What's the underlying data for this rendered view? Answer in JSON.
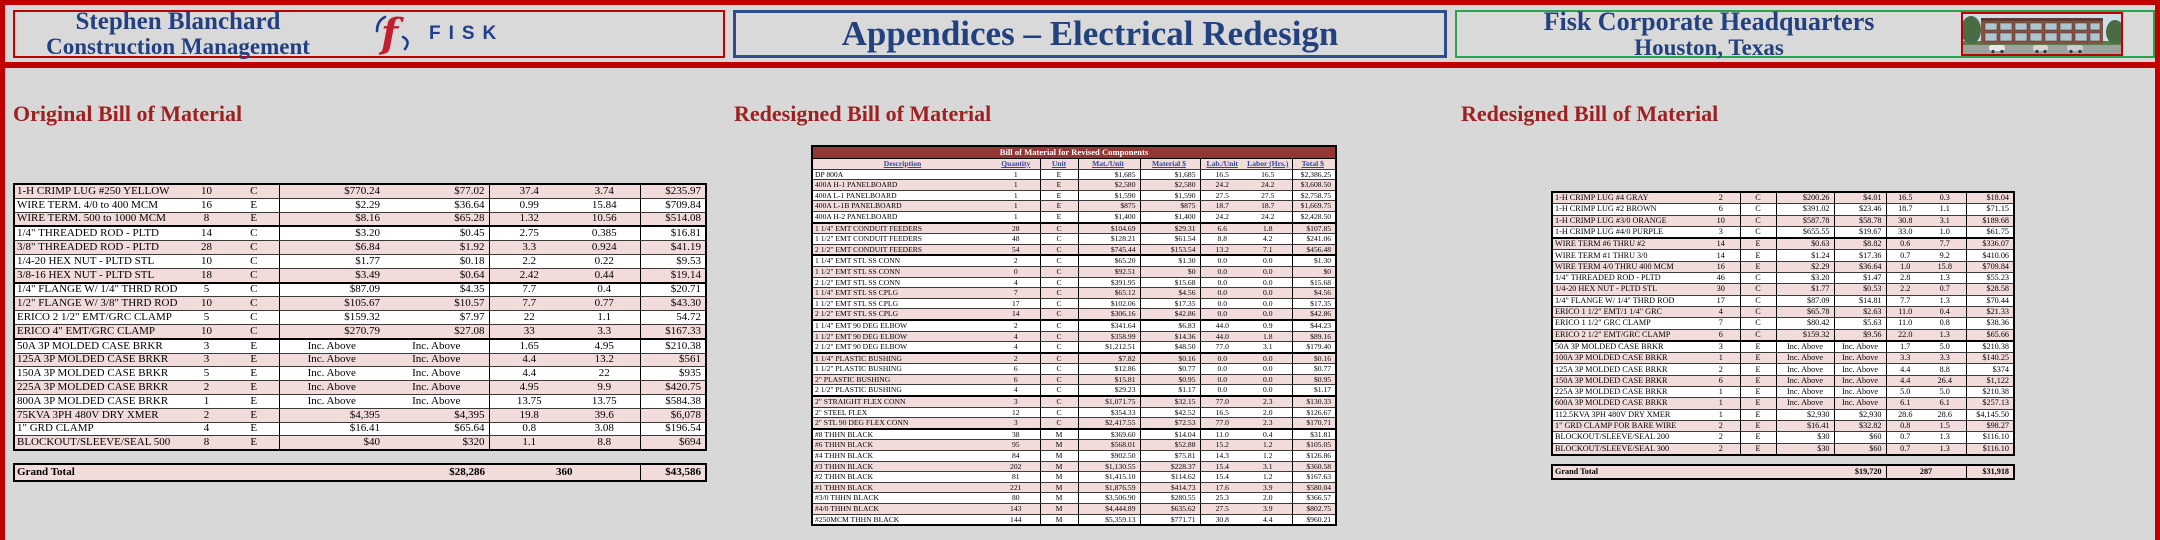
{
  "header": {
    "left": {
      "line1": "Stephen Blanchard",
      "line2": "Construction Management"
    },
    "logo_text": "FISK",
    "center": {
      "title": "Appendices – Electrical Redesign"
    },
    "right": {
      "line1": "Fisk Corporate Headquarters",
      "line2": "Houston, Texas"
    }
  },
  "colors": {
    "accent_red": "#c00000",
    "navy": "#24417f",
    "heading_red": "#9e2121",
    "row_pink": "#f2dcdb",
    "table_title_maroon": "#943634",
    "border_green": "#2ba24c"
  },
  "sections": {
    "left": {
      "heading": "Original Bill of Material",
      "table": {
        "zebra_first_pink": true,
        "group_end": [
          3,
          7,
          11
        ],
        "rows": [
          [
            "1-H CRIMP LUG #250 YELLOW",
            "10",
            "C",
            "$770.24",
            "$77.02",
            "37.4",
            "3.74",
            "$235.97"
          ],
          [
            "WIRE TERM. 4/0 to 400 MCM",
            "16",
            "E",
            "$2.29",
            "$36.64",
            "0.99",
            "15.84",
            "$709.84"
          ],
          [
            "WIRE TERM. 500 to 1000 MCM",
            "8",
            "E",
            "$8.16",
            "$65.28",
            "1.32",
            "10.56",
            "$514.08"
          ],
          [
            "1/4\" THREADED ROD - PLTD",
            "14",
            "C",
            "$3.20",
            "$0.45",
            "2.75",
            "0.385",
            "$16.81"
          ],
          [
            "3/8\" THREADED ROD - PLTD",
            "28",
            "C",
            "$6.84",
            "$1.92",
            "3.3",
            "0.924",
            "$41.19"
          ],
          [
            "1/4-20 HEX NUT - PLTD STL",
            "10",
            "C",
            "$1.77",
            "$0.18",
            "2.2",
            "0.22",
            "$9.53"
          ],
          [
            "3/8-16 HEX NUT - PLTD STL",
            "18",
            "C",
            "$3.49",
            "$0.64",
            "2.42",
            "0.44",
            "$19.14"
          ],
          [
            "1/4\" FLANGE W/ 1/4\" THRD ROD",
            "5",
            "C",
            "$87.09",
            "$4.35",
            "7.7",
            "0.4",
            "$20.71"
          ],
          [
            "1/2\" FLANGE W/ 3/8\" THRD ROD",
            "10",
            "C",
            "$105.67",
            "$10.57",
            "7.7",
            "0.77",
            "$43.30"
          ],
          [
            "ERICO 2 1/2\" EMT/GRC CLAMP",
            "5",
            "C",
            "$159.32",
            "$7.97",
            "22",
            "1.1",
            "54.72"
          ],
          [
            "ERICO 4\"  EMT/GRC CLAMP",
            "10",
            "C",
            "$270.79",
            "$27.08",
            "33",
            "3.3",
            "$167.33"
          ],
          [
            "50A 3P MOLDED CASE BRKR",
            "3",
            "E",
            "Inc. Above",
            "Inc. Above",
            "1.65",
            "4.95",
            "$210.38"
          ],
          [
            "125A 3P MOLDED CASE BRKR",
            "3",
            "E",
            "Inc. Above",
            "Inc. Above",
            "4.4",
            "13.2",
            "$561"
          ],
          [
            "150A 3P MOLDED CASE BRKR",
            "5",
            "E",
            "Inc. Above",
            "Inc. Above",
            "4.4",
            "22",
            "$935"
          ],
          [
            "225A 3P MOLDED CASE BRKR",
            "2",
            "E",
            "Inc. Above",
            "Inc. Above",
            "4.95",
            "9.9",
            "$420.75"
          ],
          [
            "800A 3P MOLDED CASE BRKR",
            "1",
            "E",
            "Inc. Above",
            "Inc. Above",
            "13.75",
            "13.75",
            "$584.38"
          ],
          [
            "75KVA 3PH 480V DRY XMER",
            "2",
            "E",
            "$4,395",
            "$4,395",
            "19.8",
            "39.6",
            "$6,078"
          ],
          [
            "1\"  GRD CLAMP",
            "4",
            "E",
            "$16.41",
            "$65.64",
            "0.8",
            "3.08",
            "$196.54"
          ],
          [
            "BLOCKOUT/SLEEVE/SEAL 500",
            "8",
            "E",
            "$40",
            "$320",
            "1.1",
            "8.8",
            "$694"
          ]
        ],
        "grand_total": {
          "label": "Grand Total",
          "material": "$28,286",
          "labor": "360",
          "total": "$43,586"
        }
      }
    },
    "middle": {
      "heading": "Redesigned Bill of Material",
      "table": {
        "title": "Bill of Material for Revised Components",
        "headers": [
          "Description",
          "Quantity",
          "Unit",
          "Mat./Unit",
          "Material $",
          "Lab./Unit",
          "Labor (Hrs.)",
          "Total $"
        ],
        "zebra_first_pink": false,
        "group_end": [
          5,
          8,
          14,
          17,
          21,
          24
        ],
        "rows": [
          [
            "DP 800A",
            "1",
            "E",
            "$1,685",
            "$1,685",
            "16.5",
            "16.5",
            "$2,386.25"
          ],
          [
            "400A H-1 PANELBOARD",
            "1",
            "E",
            "$2,580",
            "$2,580",
            "24.2",
            "24.2",
            "$3,608.50"
          ],
          [
            "400A L-1 PANELBOARD",
            "1",
            "E",
            "$1,590",
            "$1,590",
            "27.5",
            "27.5",
            "$2,758.75"
          ],
          [
            "400A L-1B PANELBOARD",
            "1",
            "E",
            "$875",
            "$875",
            "18.7",
            "18.7",
            "$1,669.75"
          ],
          [
            "400A H-2 PANELBOARD",
            "1",
            "E",
            "$1,400",
            "$1,400",
            "24.2",
            "24.2",
            "$2,428.50"
          ],
          [
            "1 1/4\" EMT CONDUIT FEEDERS",
            "28",
            "C",
            "$104.69",
            "$29.31",
            "6.6",
            "1.8",
            "$107.85"
          ],
          [
            "1 1/2\" EMT CONDUIT FEEDERS",
            "48",
            "C",
            "$128.21",
            "$61.54",
            "8.8",
            "4.2",
            "$241.06"
          ],
          [
            "2 1/2\" EMT CONDUIT FEEDERS",
            "54",
            "C",
            "$745.44",
            "$153.54",
            "13.2",
            "7.1",
            "$456.48"
          ],
          [
            "1 1/4\" EMT STL SS CONN",
            "2",
            "C",
            "$65.20",
            "$1.30",
            "0.0",
            "0.0",
            "$1.30"
          ],
          [
            "1 1/2\" EMT STL SS CONN",
            "0",
            "C",
            "$92.51",
            "$0",
            "0.0",
            "0.0",
            "$0"
          ],
          [
            "2 1/2\" EMT STL SS CONN",
            "4",
            "C",
            "$391.95",
            "$15.68",
            "0.0",
            "0.0",
            "$15.68"
          ],
          [
            "1 1/4\" EMT STL SS CPLG",
            "7",
            "C",
            "$65.12",
            "$4.56",
            "0.0",
            "0.0",
            "$4.56"
          ],
          [
            "1 1/2\" EMT STL SS CPLG",
            "17",
            "C",
            "$102.06",
            "$17.35",
            "0.0",
            "0.0",
            "$17.35"
          ],
          [
            "2 1/2\" EMT STL SS CPLG",
            "14",
            "C",
            "$306.16",
            "$42.86",
            "0.0",
            "0.0",
            "$42.86"
          ],
          [
            "1 1/4\" EMT 90 DEG ELBOW",
            "2",
            "C",
            "$341.64",
            "$6.83",
            "44.0",
            "0.9",
            "$44.23"
          ],
          [
            "1 1/2\" EMT 90 DEG ELBOW",
            "4",
            "C",
            "$358.99",
            "$14.36",
            "44.0",
            "1.8",
            "$89.16"
          ],
          [
            "2 1/2\" EMT 90 DEG ELBOW",
            "4",
            "C",
            "$1,212.51",
            "$48.50",
            "77.0",
            "3.1",
            "$179.40"
          ],
          [
            "1 1/4\" PLASTIC BUSHING",
            "2",
            "C",
            "$7.82",
            "$0.16",
            "0.0",
            "0.0",
            "$0.16"
          ],
          [
            "1 1/2\" PLASTIC BUSHING",
            "6",
            "C",
            "$12.86",
            "$0.77",
            "0.0",
            "0.0",
            "$0.77"
          ],
          [
            "2\"  PLASTIC BUSHING",
            "6",
            "C",
            "$15.81",
            "$0.95",
            "0.0",
            "0.0",
            "$0.95"
          ],
          [
            "2 1/2\" PLASTIC BUSHING",
            "4",
            "C",
            "$29.23",
            "$1.17",
            "0.0",
            "0.0",
            "$1.17"
          ],
          [
            "2\"  STRAIGHT FLEX CONN",
            "3",
            "C",
            "$1,071.75",
            "$32.15",
            "77.0",
            "2.3",
            "$130.33"
          ],
          [
            "2\"  STEEL FLEX",
            "12",
            "C",
            "$354.33",
            "$42.52",
            "16.5",
            "2.0",
            "$126.67"
          ],
          [
            "2\"  STL 90 DEG FLEX CONN",
            "3",
            "C",
            "$2,417.55",
            "$72.53",
            "77.0",
            "2.3",
            "$170.71"
          ],
          [
            "#8 THHN BLACK",
            "38",
            "M",
            "$369.60",
            "$14.04",
            "11.0",
            "0.4",
            "$31.81"
          ],
          [
            "#6 THHN BLACK",
            "95",
            "M",
            "$568.01",
            "$52.88",
            "15.2",
            "1.2",
            "$105.05"
          ],
          [
            "#4 THHN BLACK",
            "84",
            "M",
            "$902.50",
            "$75.81",
            "14.3",
            "1.2",
            "$126.86"
          ],
          [
            "#3 THHN BLACK",
            "202",
            "M",
            "$1,130.55",
            "$228.37",
            "15.4",
            "3.1",
            "$360.58"
          ],
          [
            "#2 THHN BLACK",
            "81",
            "M",
            "$1,415.10",
            "$114.62",
            "15.4",
            "1.2",
            "$167.63"
          ],
          [
            "#1 THHN BLACK",
            "221",
            "M",
            "$1,876.59",
            "$414.73",
            "17.6",
            "3.9",
            "$580.04"
          ],
          [
            "#3/0 THHN BLACK",
            "80",
            "M",
            "$3,506.90",
            "$280.55",
            "25.3",
            "2.0",
            "$366.57"
          ],
          [
            "#4/0 THHN BLACK",
            "143",
            "M",
            "$4,444.89",
            "$635.62",
            "27.5",
            "3.9",
            "$802.75"
          ],
          [
            "#250MCM THHN BLACK",
            "144",
            "M",
            "$5,359.13",
            "$771.71",
            "30.8",
            "4.4",
            "$960.21"
          ]
        ]
      }
    },
    "right": {
      "heading": "Redesigned Bill of Material",
      "table": {
        "zebra_first_pink": true,
        "group_end": [
          4,
          13
        ],
        "rows": [
          [
            "1-H CRIMP LUG #4 GRAY",
            "2",
            "C",
            "$200.26",
            "$4.01",
            "16.5",
            "0.3",
            "$18.04"
          ],
          [
            "1-H CRIMP LUG #2 BROWN",
            "6",
            "C",
            "$391.02",
            "$23.46",
            "18.7",
            "1.1",
            "$71.15"
          ],
          [
            "1-H CRIMP LUG #3/0 ORANGE",
            "10",
            "C",
            "$587.78",
            "$58.78",
            "30.8",
            "3.1",
            "$189.68"
          ],
          [
            "1-H CRIMP LUG #4/0 PURPLE",
            "3",
            "C",
            "$655.55",
            "$19.67",
            "33.0",
            "1.0",
            "$61.75"
          ],
          [
            "WIRE TERM #6 THRU #2",
            "14",
            "E",
            "$0.63",
            "$8.82",
            "0.6",
            "7.7",
            "$336.07"
          ],
          [
            "WIRE TERM #1 THRU 3/0",
            "14",
            "E",
            "$1.24",
            "$17.36",
            "0.7",
            "9.2",
            "$410.06"
          ],
          [
            "WIRE TERM 4/0 THRU 400 MCM",
            "16",
            "E",
            "$2.29",
            "$36.64",
            "1.0",
            "15.8",
            "$709.84"
          ],
          [
            "1/4\" THREADED ROD - PLTD",
            "46",
            "C",
            "$3.20",
            "$1.47",
            "2.8",
            "1.3",
            "$55.23"
          ],
          [
            "1/4-20 HEX NUT - PLTD STL",
            "30",
            "C",
            "$1.77",
            "$0.53",
            "2.2",
            "0.7",
            "$28.58"
          ],
          [
            "1/4\" FLANGE W/ 1/4\" THRD ROD",
            "17",
            "C",
            "$87.09",
            "$14.81",
            "7.7",
            "1.3",
            "$70.44"
          ],
          [
            "ERICO 1 1/2\" EMT/1 1/4\" GRC",
            "4",
            "C",
            "$65.78",
            "$2.63",
            "11.0",
            "0.4",
            "$21.33"
          ],
          [
            "ERICO 1 1/2\" GRC CLAMP",
            "7",
            "C",
            "$80.42",
            "$5.63",
            "11.0",
            "0.8",
            "$38.36"
          ],
          [
            "ERICO 2 1/2\" EMT/GRC CLAMP",
            "6",
            "C",
            "$159.32",
            "$9.56",
            "22.0",
            "1.3",
            "$65.66"
          ],
          [
            "50A 3P MOLDED CASE BRKR",
            "3",
            "E",
            "Inc. Above",
            "Inc. Above",
            "1.7",
            "5.0",
            "$210.38"
          ],
          [
            "100A 3P MOLDED CASE BRKR",
            "1",
            "E",
            "Inc. Above",
            "Inc. Above",
            "3.3",
            "3.3",
            "$140.25"
          ],
          [
            "125A 3P MOLDED CASE BRKR",
            "2",
            "E",
            "Inc. Above",
            "Inc. Above",
            "4.4",
            "8.8",
            "$374"
          ],
          [
            "150A 3P MOLDED CASE BRKR",
            "6",
            "E",
            "Inc. Above",
            "Inc. Above",
            "4.4",
            "26.4",
            "$1,122"
          ],
          [
            "225A 3P MOLDED CASE BRKR",
            "1",
            "E",
            "Inc. Above",
            "Inc. Above",
            "5.0",
            "5.0",
            "$210.38"
          ],
          [
            "600A 3P MOLDED CASE BRKR",
            "1",
            "E",
            "Inc. Above",
            "Inc. Above",
            "6.1",
            "6.1",
            "$257.13"
          ],
          [
            "112.5KVA 3PH 480V DRY XMER",
            "1",
            "E",
            "$2,930",
            "$2,930",
            "28.6",
            "28.6",
            "$4,145.50"
          ],
          [
            "1\" GRD CLAMP FOR BARE WIRE",
            "2",
            "E",
            "$16.41",
            "$32.82",
            "0.8",
            "1.5",
            "$98.27"
          ],
          [
            "BLOCKOUT/SLEEVE/SEAL 200",
            "2",
            "E",
            "$30",
            "$60",
            "0.7",
            "1.3",
            "$116.10"
          ],
          [
            "BLOCKOUT/SLEEVE/SEAL 300",
            "2",
            "E",
            "$30",
            "$60",
            "0.7",
            "1.3",
            "$116.10"
          ]
        ],
        "grand_total": {
          "label": "Grand Total",
          "material": "$19,720",
          "labor": "287",
          "total": "$31,918"
        }
      }
    }
  }
}
